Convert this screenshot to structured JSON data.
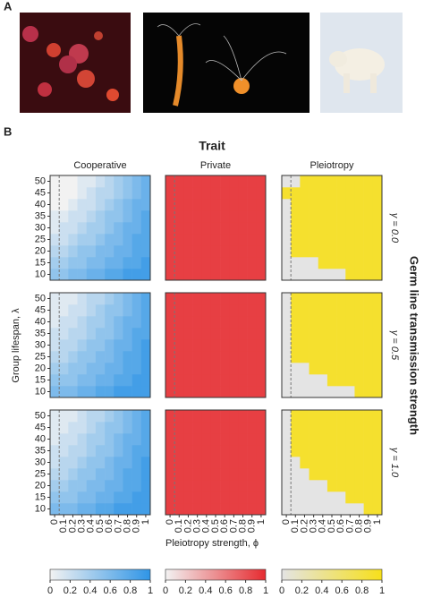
{
  "chart_data": {
    "type": "heatmap",
    "panel_labels": [
      "A",
      "B"
    ],
    "title": "Trait",
    "columns": [
      "Cooperative",
      "Private",
      "Pleiotropy"
    ],
    "rows": [
      "γ = 0.0",
      "γ = 0.5",
      "γ = 1.0"
    ],
    "row_axis_label": "Germ line transmission strength",
    "xlabel": "Pleiotropy strength, ϕ",
    "ylabel": "Group lifespan, λ",
    "x": [
      0,
      0.1,
      0.2,
      0.3,
      0.4,
      0.5,
      0.6,
      0.7,
      0.8,
      0.9,
      1
    ],
    "y": [
      10,
      15,
      20,
      25,
      30,
      35,
      40,
      45,
      50
    ],
    "clim": [
      0,
      1
    ],
    "cbar_ticks": [
      0,
      0.2,
      0.4,
      0.6,
      0.8,
      1
    ],
    "colormaps": [
      {
        "low": "#f2f2f2",
        "high": "#2f95e6"
      },
      {
        "low": "#f2f2f2",
        "high": "#e62b30"
      },
      {
        "low": "#e4e4e4",
        "high": "#f7e01a"
      }
    ],
    "values": [
      [
        [
          [
            0.5,
            0.5,
            0.6,
            0.6,
            0.7,
            0.7,
            0.8,
            0.8,
            0.9,
            0.9,
            0.9
          ],
          [
            0.4,
            0.4,
            0.5,
            0.5,
            0.6,
            0.6,
            0.7,
            0.7,
            0.8,
            0.8,
            0.9
          ],
          [
            0.3,
            0.3,
            0.4,
            0.5,
            0.5,
            0.6,
            0.6,
            0.7,
            0.7,
            0.8,
            0.8
          ],
          [
            0.2,
            0.2,
            0.3,
            0.4,
            0.4,
            0.5,
            0.6,
            0.6,
            0.7,
            0.8,
            0.8
          ],
          [
            0.1,
            0.2,
            0.2,
            0.3,
            0.4,
            0.4,
            0.5,
            0.6,
            0.7,
            0.7,
            0.8
          ],
          [
            0.1,
            0.1,
            0.2,
            0.2,
            0.3,
            0.4,
            0.5,
            0.5,
            0.6,
            0.7,
            0.8
          ],
          [
            0,
            0,
            0.1,
            0.2,
            0.2,
            0.3,
            0.4,
            0.5,
            0.6,
            0.7,
            0.7
          ],
          [
            0,
            0,
            0,
            0.1,
            0.2,
            0.3,
            0.3,
            0.4,
            0.5,
            0.6,
            0.7
          ],
          [
            0,
            0,
            0,
            0.1,
            0.1,
            0.2,
            0.3,
            0.4,
            0.5,
            0.6,
            0.7
          ]
        ],
        [
          [
            0.9,
            0.9,
            0.9,
            0.9,
            0.9,
            0.9,
            0.9,
            0.9,
            0.9,
            0.9,
            0.9
          ],
          [
            0.9,
            0.9,
            0.9,
            0.9,
            0.9,
            0.9,
            0.9,
            0.9,
            0.9,
            0.9,
            0.9
          ],
          [
            0.9,
            0.9,
            0.9,
            0.9,
            0.9,
            0.9,
            0.9,
            0.9,
            0.9,
            0.9,
            0.9
          ],
          [
            0.9,
            0.9,
            0.9,
            0.9,
            0.9,
            0.9,
            0.9,
            0.9,
            0.9,
            0.9,
            0.9
          ],
          [
            0.9,
            0.9,
            0.9,
            0.9,
            0.9,
            0.9,
            0.9,
            0.9,
            0.9,
            0.9,
            0.9
          ],
          [
            0.9,
            0.9,
            0.9,
            0.9,
            0.9,
            0.9,
            0.9,
            0.9,
            0.9,
            0.9,
            0.9
          ],
          [
            0.9,
            0.9,
            0.9,
            0.9,
            0.9,
            0.9,
            0.9,
            0.9,
            0.9,
            0.9,
            0.9
          ],
          [
            0.9,
            0.9,
            0.9,
            0.9,
            0.9,
            0.9,
            0.9,
            0.9,
            0.9,
            0.9,
            0.9
          ],
          [
            0.9,
            0.9,
            0.9,
            0.9,
            0.9,
            0.9,
            0.9,
            0.9,
            0.9,
            0.9,
            0.9
          ]
        ],
        [
          [
            0,
            0,
            0,
            0,
            0,
            0,
            0,
            0.9,
            0.9,
            0.9,
            0.9
          ],
          [
            0,
            0,
            0,
            0,
            0.9,
            0.9,
            0.9,
            0.9,
            0.9,
            0.9,
            0.9
          ],
          [
            0,
            0.9,
            0.9,
            0.9,
            0.9,
            0.9,
            0.9,
            0.9,
            0.9,
            0.9,
            0.9
          ],
          [
            0,
            0.9,
            0.9,
            0.9,
            0.9,
            0.9,
            0.9,
            0.9,
            0.9,
            0.9,
            0.9
          ],
          [
            0,
            0.9,
            0.9,
            0.9,
            0.9,
            0.9,
            0.9,
            0.9,
            0.9,
            0.9,
            0.9
          ],
          [
            0,
            0.9,
            0.9,
            0.9,
            0.9,
            0.9,
            0.9,
            0.9,
            0.9,
            0.9,
            0.9
          ],
          [
            0,
            0.9,
            0.9,
            0.9,
            0.9,
            0.9,
            0.9,
            0.9,
            0.9,
            0.9,
            0.9
          ],
          [
            0.9,
            0.9,
            0.9,
            0.9,
            0.9,
            0.9,
            0.9,
            0.9,
            0.9,
            0.9,
            0.9
          ],
          [
            0,
            0,
            0.9,
            0.9,
            0.9,
            0.9,
            0.9,
            0.9,
            0.9,
            0.9,
            0.9
          ]
        ]
      ],
      [
        [
          [
            0.6,
            0.6,
            0.6,
            0.7,
            0.7,
            0.8,
            0.8,
            0.9,
            0.9,
            0.9,
            0.9
          ],
          [
            0.5,
            0.5,
            0.5,
            0.6,
            0.6,
            0.7,
            0.7,
            0.8,
            0.8,
            0.9,
            0.9
          ],
          [
            0.4,
            0.4,
            0.5,
            0.5,
            0.6,
            0.6,
            0.7,
            0.7,
            0.8,
            0.8,
            0.9
          ],
          [
            0.3,
            0.3,
            0.4,
            0.5,
            0.5,
            0.6,
            0.6,
            0.7,
            0.8,
            0.8,
            0.9
          ],
          [
            0.2,
            0.3,
            0.3,
            0.4,
            0.5,
            0.5,
            0.6,
            0.7,
            0.7,
            0.8,
            0.9
          ],
          [
            0.2,
            0.2,
            0.3,
            0.3,
            0.4,
            0.5,
            0.5,
            0.6,
            0.7,
            0.8,
            0.8
          ],
          [
            0.1,
            0.2,
            0.2,
            0.3,
            0.4,
            0.4,
            0.5,
            0.6,
            0.7,
            0.7,
            0.8
          ],
          [
            0.1,
            0.1,
            0.2,
            0.2,
            0.3,
            0.4,
            0.5,
            0.5,
            0.6,
            0.7,
            0.8
          ],
          [
            0.1,
            0.1,
            0.1,
            0.2,
            0.3,
            0.3,
            0.4,
            0.5,
            0.6,
            0.7,
            0.8
          ]
        ],
        [
          [
            0.9,
            0.9,
            0.9,
            0.9,
            0.9,
            0.9,
            0.9,
            0.9,
            0.9,
            0.9,
            0.9
          ],
          [
            0.9,
            0.9,
            0.9,
            0.9,
            0.9,
            0.9,
            0.9,
            0.9,
            0.9,
            0.9,
            0.9
          ],
          [
            0.9,
            0.9,
            0.9,
            0.9,
            0.9,
            0.9,
            0.9,
            0.9,
            0.9,
            0.9,
            0.9
          ],
          [
            0.9,
            0.9,
            0.9,
            0.9,
            0.9,
            0.9,
            0.9,
            0.9,
            0.9,
            0.9,
            0.9
          ],
          [
            0.9,
            0.9,
            0.9,
            0.9,
            0.9,
            0.9,
            0.9,
            0.9,
            0.9,
            0.9,
            0.9
          ],
          [
            0.9,
            0.9,
            0.9,
            0.9,
            0.9,
            0.9,
            0.9,
            0.9,
            0.9,
            0.9,
            0.9
          ],
          [
            0.9,
            0.9,
            0.9,
            0.9,
            0.9,
            0.9,
            0.9,
            0.9,
            0.9,
            0.9,
            0.9
          ],
          [
            0.9,
            0.9,
            0.9,
            0.9,
            0.9,
            0.9,
            0.9,
            0.9,
            0.9,
            0.9,
            0.9
          ],
          [
            0.9,
            0.9,
            0.9,
            0.9,
            0.9,
            0.9,
            0.9,
            0.9,
            0.9,
            0.9,
            0.9
          ]
        ],
        [
          [
            0,
            0,
            0,
            0,
            0,
            0,
            0,
            0,
            0.9,
            0.9,
            0.9
          ],
          [
            0,
            0,
            0,
            0,
            0,
            0.9,
            0.9,
            0.9,
            0.9,
            0.9,
            0.9
          ],
          [
            0,
            0,
            0,
            0.9,
            0.9,
            0.9,
            0.9,
            0.9,
            0.9,
            0.9,
            0.9
          ],
          [
            0,
            0.9,
            0.9,
            0.9,
            0.9,
            0.9,
            0.9,
            0.9,
            0.9,
            0.9,
            0.9
          ],
          [
            0,
            0.9,
            0.9,
            0.9,
            0.9,
            0.9,
            0.9,
            0.9,
            0.9,
            0.9,
            0.9
          ],
          [
            0,
            0.9,
            0.9,
            0.9,
            0.9,
            0.9,
            0.9,
            0.9,
            0.9,
            0.9,
            0.9
          ],
          [
            0,
            0.9,
            0.9,
            0.9,
            0.9,
            0.9,
            0.9,
            0.9,
            0.9,
            0.9,
            0.9
          ],
          [
            0,
            0.9,
            0.9,
            0.9,
            0.9,
            0.9,
            0.9,
            0.9,
            0.9,
            0.9,
            0.9
          ],
          [
            0,
            0.9,
            0.9,
            0.9,
            0.9,
            0.9,
            0.9,
            0.9,
            0.9,
            0.9,
            0.9
          ]
        ]
      ],
      [
        [
          [
            0.6,
            0.6,
            0.6,
            0.7,
            0.7,
            0.8,
            0.8,
            0.9,
            0.9,
            0.9,
            0.9
          ],
          [
            0.5,
            0.5,
            0.5,
            0.6,
            0.6,
            0.7,
            0.7,
            0.8,
            0.8,
            0.9,
            0.9
          ],
          [
            0.4,
            0.4,
            0.5,
            0.5,
            0.6,
            0.6,
            0.7,
            0.7,
            0.8,
            0.8,
            0.9
          ],
          [
            0.3,
            0.3,
            0.4,
            0.5,
            0.5,
            0.6,
            0.6,
            0.7,
            0.8,
            0.8,
            0.9
          ],
          [
            0.2,
            0.3,
            0.3,
            0.4,
            0.5,
            0.5,
            0.6,
            0.7,
            0.7,
            0.8,
            0.9
          ],
          [
            0.2,
            0.2,
            0.3,
            0.3,
            0.4,
            0.5,
            0.5,
            0.6,
            0.7,
            0.8,
            0.8
          ],
          [
            0.1,
            0.2,
            0.2,
            0.3,
            0.4,
            0.4,
            0.5,
            0.6,
            0.7,
            0.7,
            0.8
          ],
          [
            0.1,
            0.1,
            0.2,
            0.2,
            0.3,
            0.4,
            0.5,
            0.5,
            0.6,
            0.7,
            0.8
          ],
          [
            0.1,
            0.1,
            0.1,
            0.2,
            0.3,
            0.3,
            0.4,
            0.5,
            0.6,
            0.7,
            0.8
          ]
        ],
        [
          [
            0.9,
            0.9,
            0.9,
            0.9,
            0.9,
            0.9,
            0.9,
            0.9,
            0.9,
            0.9,
            0.9
          ],
          [
            0.9,
            0.9,
            0.9,
            0.9,
            0.9,
            0.9,
            0.9,
            0.9,
            0.9,
            0.9,
            0.9
          ],
          [
            0.9,
            0.9,
            0.9,
            0.9,
            0.9,
            0.9,
            0.9,
            0.9,
            0.9,
            0.9,
            0.9
          ],
          [
            0.9,
            0.9,
            0.9,
            0.9,
            0.9,
            0.9,
            0.9,
            0.9,
            0.9,
            0.9,
            0.9
          ],
          [
            0.9,
            0.9,
            0.9,
            0.9,
            0.9,
            0.9,
            0.9,
            0.9,
            0.9,
            0.9,
            0.9
          ],
          [
            0.9,
            0.9,
            0.9,
            0.9,
            0.9,
            0.9,
            0.9,
            0.9,
            0.9,
            0.9,
            0.9
          ],
          [
            0.9,
            0.9,
            0.9,
            0.9,
            0.9,
            0.9,
            0.9,
            0.9,
            0.9,
            0.9,
            0.9
          ],
          [
            0.9,
            0.9,
            0.9,
            0.9,
            0.9,
            0.9,
            0.9,
            0.9,
            0.9,
            0.9,
            0.9
          ],
          [
            0.9,
            0.9,
            0.9,
            0.9,
            0.9,
            0.9,
            0.9,
            0.9,
            0.9,
            0.9,
            0.9
          ]
        ],
        [
          [
            0,
            0,
            0,
            0,
            0,
            0,
            0,
            0,
            0,
            0.9,
            0.9
          ],
          [
            0,
            0,
            0,
            0,
            0,
            0,
            0,
            0.9,
            0.9,
            0.9,
            0.9
          ],
          [
            0,
            0,
            0,
            0,
            0,
            0.9,
            0.9,
            0.9,
            0.9,
            0.9,
            0.9
          ],
          [
            0,
            0,
            0,
            0.9,
            0.9,
            0.9,
            0.9,
            0.9,
            0.9,
            0.9,
            0.9
          ],
          [
            0,
            0,
            0.9,
            0.9,
            0.9,
            0.9,
            0.9,
            0.9,
            0.9,
            0.9,
            0.9
          ],
          [
            0,
            0.9,
            0.9,
            0.9,
            0.9,
            0.9,
            0.9,
            0.9,
            0.9,
            0.9,
            0.9
          ],
          [
            0,
            0.9,
            0.9,
            0.9,
            0.9,
            0.9,
            0.9,
            0.9,
            0.9,
            0.9,
            0.9
          ],
          [
            0,
            0.9,
            0.9,
            0.9,
            0.9,
            0.9,
            0.9,
            0.9,
            0.9,
            0.9,
            0.9
          ],
          [
            0,
            0.9,
            0.9,
            0.9,
            0.9,
            0.9,
            0.9,
            0.9,
            0.9,
            0.9,
            0.9
          ]
        ]
      ]
    ]
  }
}
